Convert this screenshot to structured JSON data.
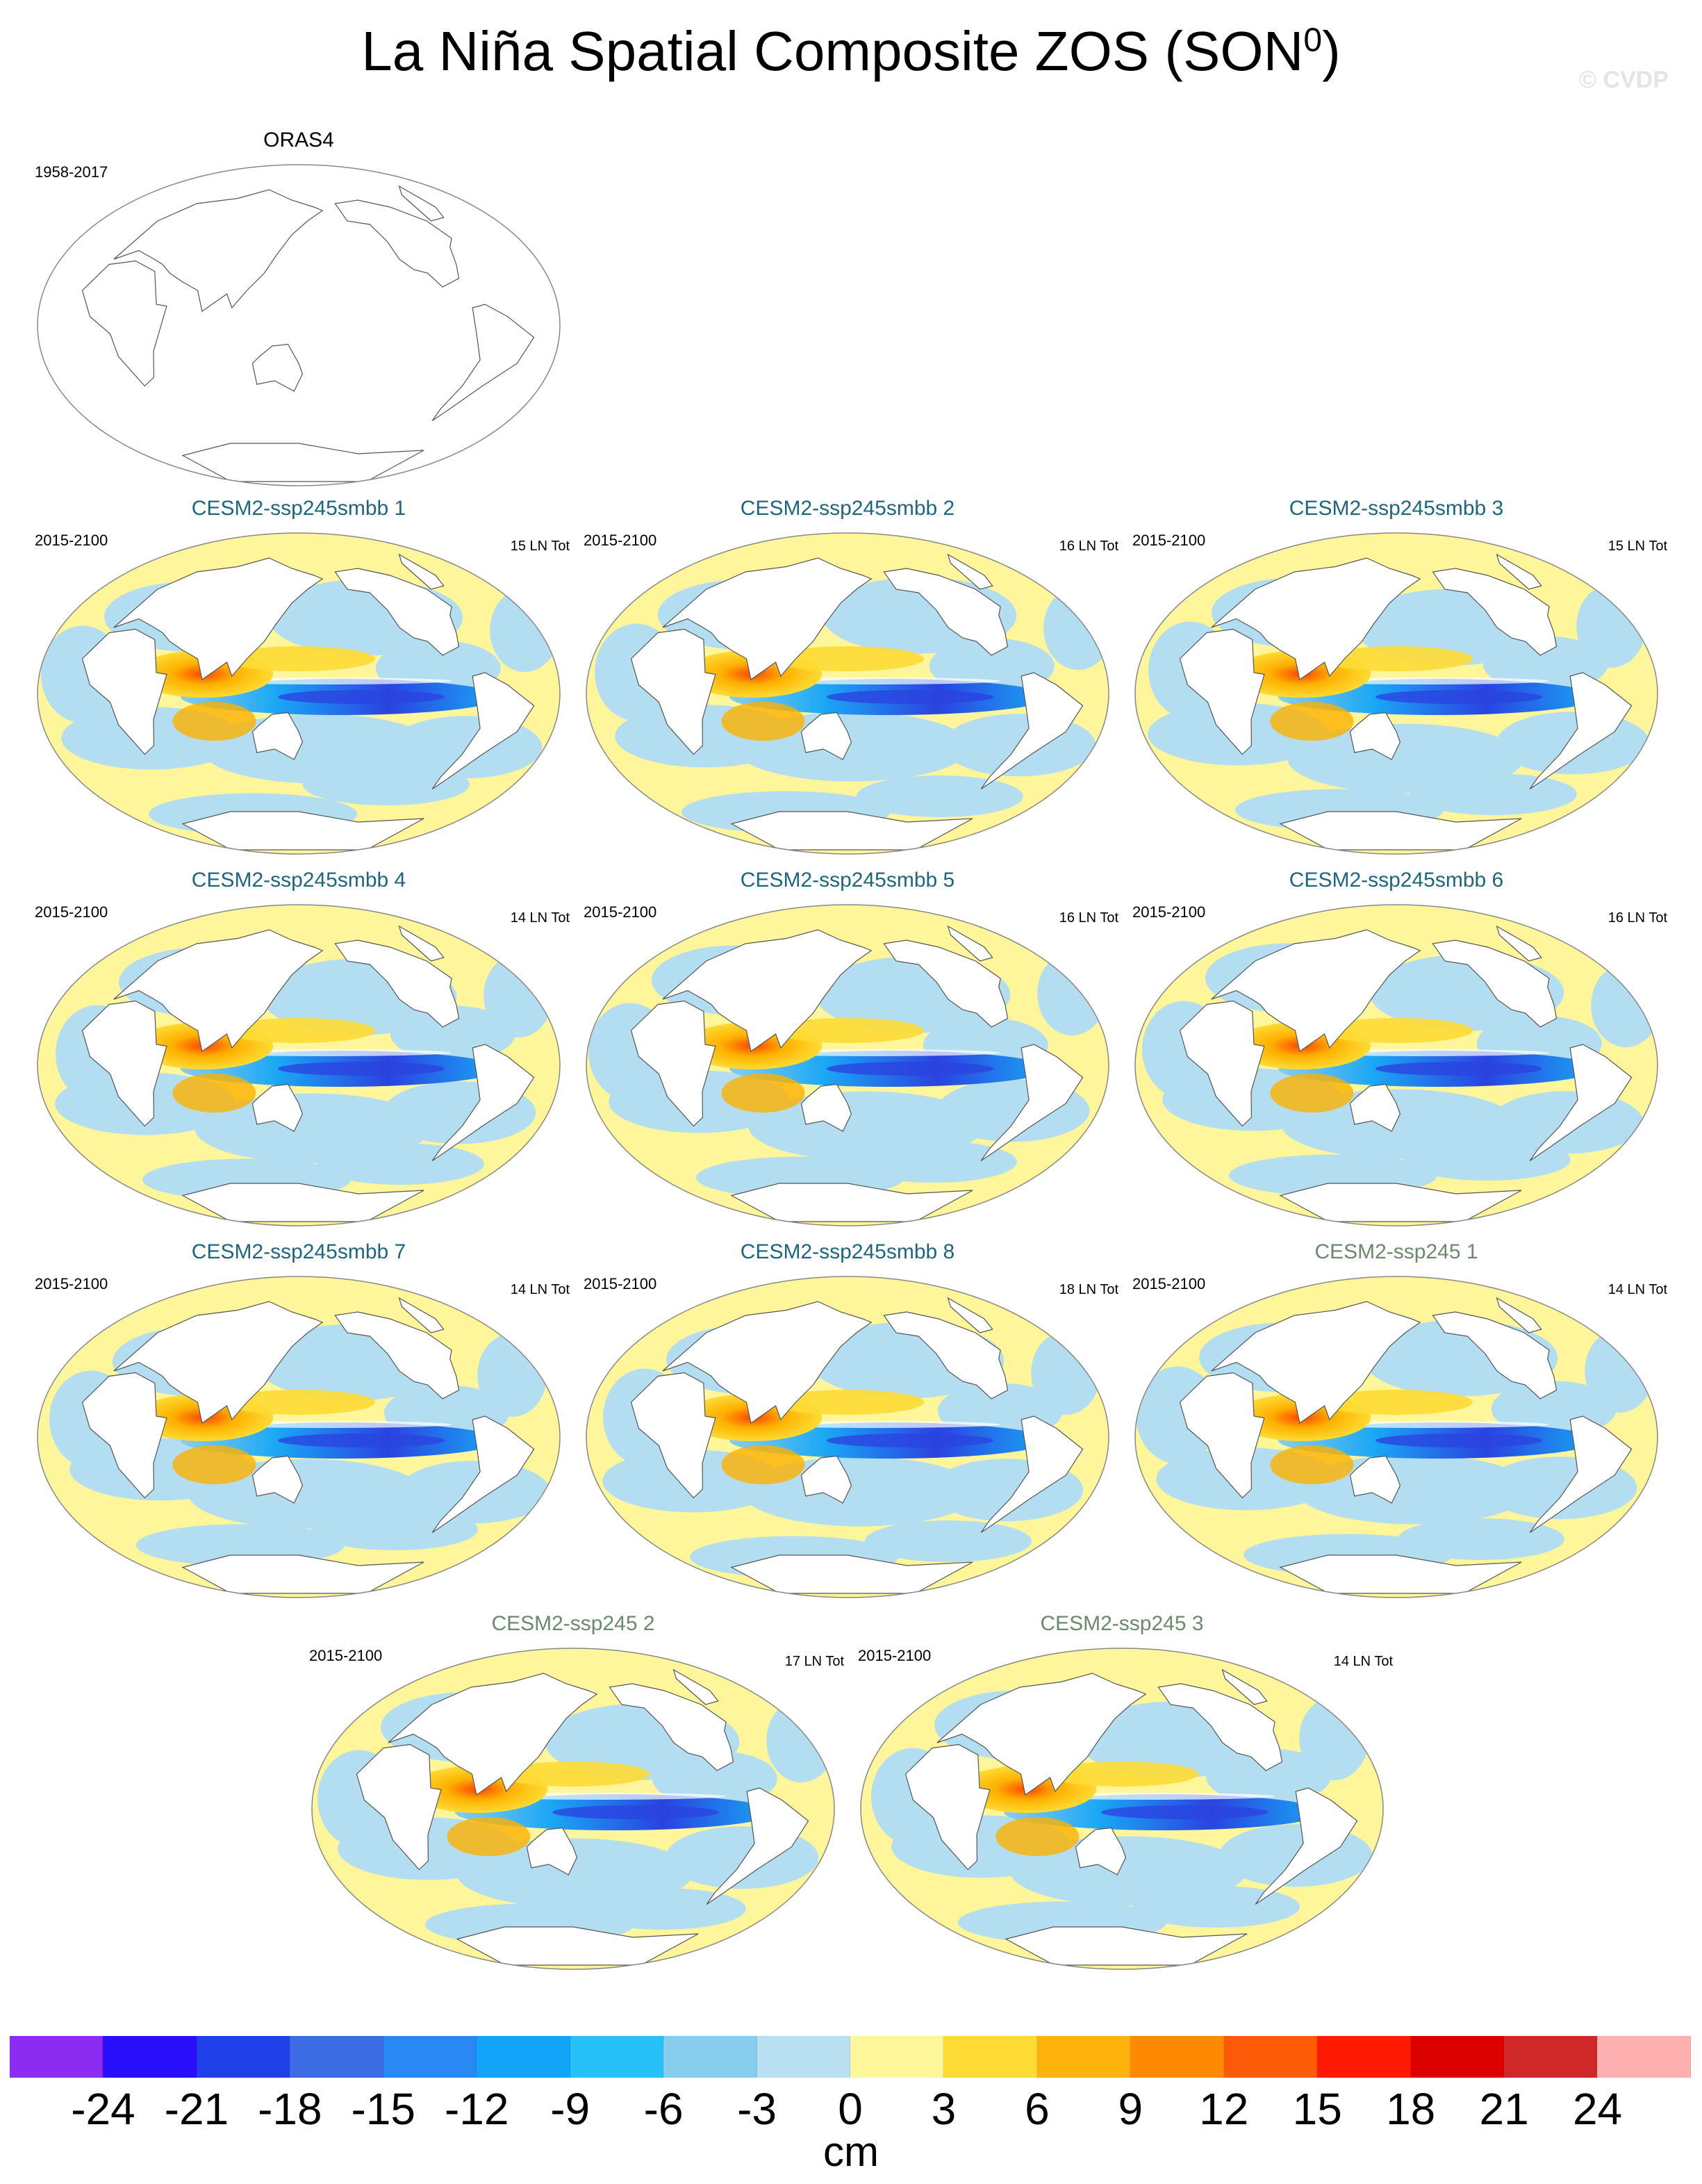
{
  "title": "La Niña Spatial Composite ZOS (SON",
  "title_sup": "0",
  "title_close": ")",
  "watermark": "© CVDP",
  "colors": {
    "ocean_blue": "#b3ddf0",
    "ocean_yellow": "#fff59a",
    "orange": "#fdb100",
    "red": "#ff4500",
    "deep_blue": "#2a43e0",
    "sky": "#1aa7f5",
    "title_teal": "#1d6680",
    "title_green": "#6a8a6a"
  },
  "panels": [
    {
      "title": "ORAS4",
      "left": "1958-2017",
      "right": "",
      "color": "#000000",
      "style": "obs"
    },
    {
      "title": "CESM2-ssp245smbb 1",
      "left": "2015-2100",
      "right": "15 LN Tot",
      "color": "#1d6680",
      "style": "model"
    },
    {
      "title": "CESM2-ssp245smbb 2",
      "left": "2015-2100",
      "right": "16 LN Tot",
      "color": "#1d6680",
      "style": "model"
    },
    {
      "title": "CESM2-ssp245smbb 3",
      "left": "2015-2100",
      "right": "15 LN Tot",
      "color": "#1d6680",
      "style": "model"
    },
    {
      "title": "CESM2-ssp245smbb 4",
      "left": "2015-2100",
      "right": "14 LN Tot",
      "color": "#1d6680",
      "style": "model"
    },
    {
      "title": "CESM2-ssp245smbb 5",
      "left": "2015-2100",
      "right": "16 LN Tot",
      "color": "#1d6680",
      "style": "model"
    },
    {
      "title": "CESM2-ssp245smbb 6",
      "left": "2015-2100",
      "right": "16 LN Tot",
      "color": "#1d6680",
      "style": "model"
    },
    {
      "title": "CESM2-ssp245smbb 7",
      "left": "2015-2100",
      "right": "14 LN Tot",
      "color": "#1d6680",
      "style": "model"
    },
    {
      "title": "CESM2-ssp245smbb 8",
      "left": "2015-2100",
      "right": "18 LN Tot",
      "color": "#1d6680",
      "style": "model"
    },
    {
      "title": "CESM2-ssp245 1",
      "left": "2015-2100",
      "right": "14 LN Tot",
      "color": "#6a8a6a",
      "style": "model"
    },
    {
      "title": "CESM2-ssp245 2",
      "left": "2015-2100",
      "right": "17 LN Tot",
      "color": "#6a8a6a",
      "style": "model"
    },
    {
      "title": "CESM2-ssp245 3",
      "left": "2015-2100",
      "right": "14 LN Tot",
      "color": "#6a8a6a",
      "style": "model"
    }
  ],
  "colorbar": {
    "colors": [
      "#8c2cf0",
      "#2a10fa",
      "#2040ea",
      "#3c6ce4",
      "#2a88f4",
      "#12a4f8",
      "#28c0f8",
      "#88cdee",
      "#b8e0f0",
      "#fef79c",
      "#fedb34",
      "#fdb20c",
      "#fd8a02",
      "#fd5a08",
      "#fd1a02",
      "#dd0000",
      "#d02828",
      "#ffb0b0"
    ],
    "ticks": [
      "-24",
      "-21",
      "-18",
      "-15",
      "-12",
      "-9",
      "-6",
      "-3",
      "0",
      "3",
      "6",
      "9",
      "12",
      "15",
      "18",
      "21",
      "24"
    ],
    "units": "cm"
  }
}
